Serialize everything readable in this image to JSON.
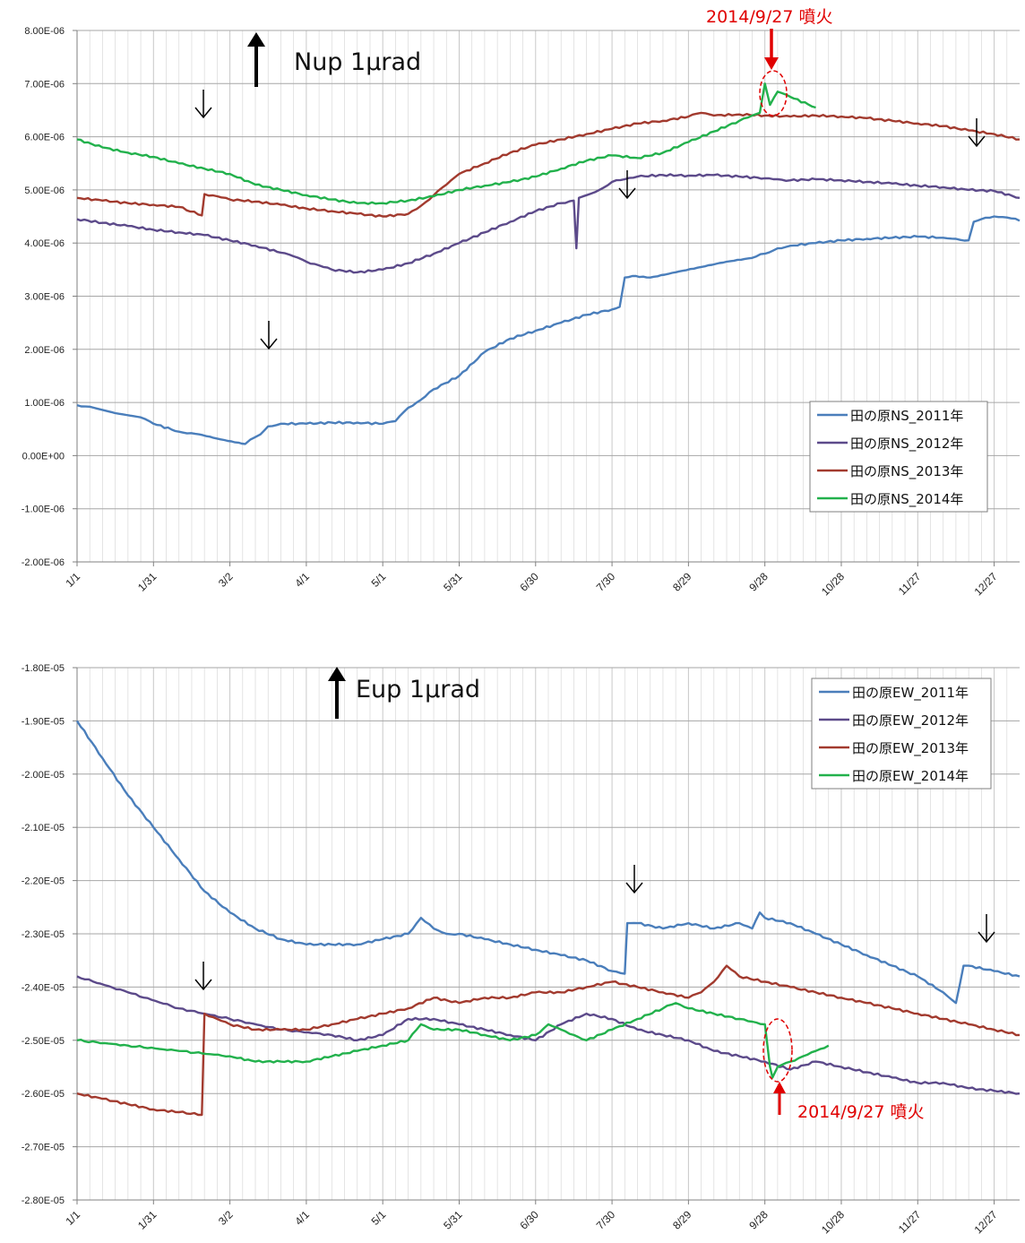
{
  "colors": {
    "s2011": "#4a7ebb",
    "s2012": "#5c4a8a",
    "s2013": "#a23a2e",
    "s2014": "#22b14c",
    "annotation": "#e00000",
    "grid": "#d9d9d9",
    "axis_major": "#a6a6a6"
  },
  "chart_data": [
    {
      "type": "line",
      "ylim": [
        -2e-06,
        8e-06
      ],
      "y_tick_labels": [
        "8.00E-06",
        "7.00E-06",
        "6.00E-06",
        "5.00E-06",
        "4.00E-06",
        "3.00E-06",
        "2.00E-06",
        "1.00E-06",
        "0.00E+00",
        "-1.00E-06",
        "-2.00E-06"
      ],
      "x_tick_labels": [
        "1/1",
        "1/31",
        "3/2",
        "4/1",
        "5/1",
        "5/31",
        "6/30",
        "7/30",
        "8/29",
        "9/28",
        "10/28",
        "11/27",
        "12/27"
      ],
      "xlim_days": [
        0,
        370
      ],
      "unit_label": "Nup 1μrad",
      "eruption_label": "2014/9/27 噴火",
      "legend": [
        "田の原NS_2011年",
        "田の原NS_2012年",
        "田の原NS_2013年",
        "田の原NS_2014年"
      ],
      "series": [
        {
          "name": "田の原NS_2011年",
          "color_key": "s2011",
          "x": [
            0,
            5,
            15,
            25,
            30,
            40,
            48,
            55,
            62,
            66,
            68,
            72,
            75,
            80,
            90,
            100,
            110,
            120,
            125,
            130,
            135,
            140,
            150,
            160,
            170,
            180,
            190,
            200,
            210,
            213,
            215,
            218,
            225,
            235,
            245,
            255,
            265,
            270,
            275,
            280,
            290,
            300,
            310,
            320,
            330,
            340,
            345,
            350,
            352,
            355,
            360,
            365,
            370
          ],
          "y": [
            9.5e-07,
            9.2e-07,
            8e-07,
            7.2e-07,
            6e-07,
            4.5e-07,
            4e-07,
            3.2e-07,
            2.5e-07,
            2.2e-07,
            3e-07,
            4e-07,
            5.5e-07,
            6e-07,
            6e-07,
            6.2e-07,
            6.2e-07,
            6e-07,
            6.5e-07,
            9e-07,
            1.05e-06,
            1.25e-06,
            1.5e-06,
            1.95e-06,
            2.2e-06,
            2.35e-06,
            2.5e-06,
            2.65e-06,
            2.75e-06,
            2.8e-06,
            3.35e-06,
            3.38e-06,
            3.35e-06,
            3.45e-06,
            3.55e-06,
            3.65e-06,
            3.72e-06,
            3.8e-06,
            3.9e-06,
            3.95e-06,
            4e-06,
            4.05e-06,
            4.08e-06,
            4.1e-06,
            4.12e-06,
            4.1e-06,
            4.08e-06,
            4.05e-06,
            4.4e-06,
            4.45e-06,
            4.5e-06,
            4.48e-06,
            4.42e-06
          ]
        },
        {
          "name": "田の原NS_2012年",
          "color_key": "s2012",
          "x": [
            0,
            10,
            20,
            30,
            40,
            50,
            60,
            70,
            80,
            85,
            90,
            95,
            100,
            110,
            120,
            130,
            140,
            150,
            160,
            170,
            180,
            190,
            195,
            196,
            197,
            200,
            205,
            210,
            215,
            220,
            230,
            240,
            250,
            260,
            270,
            275,
            280,
            290,
            300,
            310,
            320,
            330,
            340,
            350,
            360,
            370
          ],
          "y": [
            4.45e-06,
            4.38e-06,
            4.32e-06,
            4.25e-06,
            4.2e-06,
            4.15e-06,
            4.05e-06,
            3.95e-06,
            3.82e-06,
            3.75e-06,
            3.65e-06,
            3.58e-06,
            3.5e-06,
            3.45e-06,
            3.5e-06,
            3.62e-06,
            3.8e-06,
            4e-06,
            4.2e-06,
            4.4e-06,
            4.6e-06,
            4.75e-06,
            4.8e-06,
            3.9e-06,
            4.85e-06,
            4.9e-06,
            5e-06,
            5.15e-06,
            5.2e-06,
            5.25e-06,
            5.28e-06,
            5.27e-06,
            5.28e-06,
            5.25e-06,
            5.22e-06,
            5.2e-06,
            5.18e-06,
            5.2e-06,
            5.18e-06,
            5.15e-06,
            5.12e-06,
            5.08e-06,
            5.05e-06,
            5e-06,
            4.98e-06,
            4.85e-06
          ]
        },
        {
          "name": "田の原NS_2013年",
          "color_key": "s2013",
          "x": [
            0,
            10,
            20,
            30,
            40,
            49,
            50,
            55,
            60,
            70,
            80,
            90,
            100,
            110,
            120,
            130,
            135,
            140,
            145,
            150,
            160,
            170,
            180,
            190,
            200,
            210,
            220,
            230,
            240,
            245,
            250,
            260,
            270,
            280,
            290,
            300,
            310,
            320,
            330,
            340,
            350,
            360,
            370
          ],
          "y": [
            4.85e-06,
            4.8e-06,
            4.75e-06,
            4.72e-06,
            4.68e-06,
            4.52e-06,
            4.92e-06,
            4.88e-06,
            4.82e-06,
            4.78e-06,
            4.72e-06,
            4.65e-06,
            4.6e-06,
            4.55e-06,
            4.5e-06,
            4.55e-06,
            4.7e-06,
            4.9e-06,
            5.1e-06,
            5.3e-06,
            5.5e-06,
            5.7e-06,
            5.85e-06,
            5.95e-06,
            6.05e-06,
            6.15e-06,
            6.25e-06,
            6.3e-06,
            6.38e-06,
            6.45e-06,
            6.4e-06,
            6.42e-06,
            6.4e-06,
            6.38e-06,
            6.4e-06,
            6.38e-06,
            6.35e-06,
            6.3e-06,
            6.25e-06,
            6.2e-06,
            6.12e-06,
            6.05e-06,
            5.95e-06
          ]
        },
        {
          "name": "田の原NS_2014年",
          "color_key": "s2014",
          "x": [
            0,
            10,
            20,
            30,
            40,
            50,
            60,
            70,
            80,
            90,
            100,
            110,
            120,
            130,
            140,
            150,
            160,
            170,
            180,
            190,
            200,
            210,
            220,
            230,
            240,
            250,
            260,
            265,
            268,
            270,
            272,
            275,
            280,
            290
          ],
          "y": [
            5.95e-06,
            5.8e-06,
            5.7e-06,
            5.62e-06,
            5.5e-06,
            5.4e-06,
            5.3e-06,
            5.1e-06,
            5e-06,
            4.9e-06,
            4.82e-06,
            4.75e-06,
            4.75e-06,
            4.8e-06,
            4.88e-06,
            5e-06,
            5.08e-06,
            5.15e-06,
            5.25e-06,
            5.4e-06,
            5.55e-06,
            5.65e-06,
            5.6e-06,
            5.7e-06,
            5.9e-06,
            6.1e-06,
            6.3e-06,
            6.4e-06,
            6.45e-06,
            7e-06,
            6.6e-06,
            6.85e-06,
            6.75e-06,
            6.55e-06
          ]
        }
      ]
    },
    {
      "type": "line",
      "ylim": [
        -2.8e-05,
        -1.8e-05
      ],
      "y_tick_labels": [
        "-1.80E-05",
        "-1.90E-05",
        "-2.00E-05",
        "-2.10E-05",
        "-2.20E-05",
        "-2.30E-05",
        "-2.40E-05",
        "-2.50E-05",
        "-2.60E-05",
        "-2.70E-05",
        "-2.80E-05"
      ],
      "x_tick_labels": [
        "1/1",
        "1/31",
        "3/2",
        "4/1",
        "5/1",
        "5/31",
        "6/30",
        "7/30",
        "8/29",
        "9/28",
        "10/28",
        "11/27",
        "12/27"
      ],
      "xlim_days": [
        0,
        370
      ],
      "unit_label": "Eup 1μrad",
      "eruption_label": "2014/9/27 噴火",
      "legend": [
        "田の原EW_2011年",
        "田の原EW_2012年",
        "田の原EW_2013年",
        "田の原EW_2014年"
      ],
      "series": [
        {
          "name": "田の原EW_2011年",
          "color_key": "s2011",
          "x": [
            0,
            10,
            20,
            30,
            40,
            50,
            60,
            70,
            80,
            90,
            100,
            110,
            120,
            130,
            135,
            140,
            145,
            150,
            160,
            170,
            180,
            190,
            200,
            210,
            215,
            216,
            220,
            230,
            240,
            250,
            260,
            265,
            268,
            270,
            280,
            290,
            300,
            310,
            320,
            330,
            340,
            345,
            348,
            350,
            360,
            370
          ],
          "y": [
            -1.9e-05,
            -1.97e-05,
            -2.04e-05,
            -2.1e-05,
            -2.16e-05,
            -2.22e-05,
            -2.26e-05,
            -2.29e-05,
            -2.31e-05,
            -2.32e-05,
            -2.32e-05,
            -2.32e-05,
            -2.31e-05,
            -2.3e-05,
            -2.27e-05,
            -2.29e-05,
            -2.3e-05,
            -2.3e-05,
            -2.31e-05,
            -2.32e-05,
            -2.33e-05,
            -2.34e-05,
            -2.35e-05,
            -2.37e-05,
            -2.375e-05,
            -2.28e-05,
            -2.28e-05,
            -2.29e-05,
            -2.28e-05,
            -2.29e-05,
            -2.28e-05,
            -2.29e-05,
            -2.26e-05,
            -2.27e-05,
            -2.28e-05,
            -2.3e-05,
            -2.32e-05,
            -2.34e-05,
            -2.36e-05,
            -2.38e-05,
            -2.41e-05,
            -2.43e-05,
            -2.36e-05,
            -2.36e-05,
            -2.37e-05,
            -2.38e-05
          ]
        },
        {
          "name": "田の原EW_2012年",
          "color_key": "s2012",
          "x": [
            0,
            20,
            40,
            60,
            80,
            100,
            110,
            120,
            130,
            140,
            150,
            160,
            170,
            180,
            190,
            200,
            210,
            220,
            230,
            240,
            250,
            260,
            270,
            280,
            290,
            300,
            310,
            320,
            330,
            340,
            350,
            360,
            370
          ],
          "y": [
            -2.38e-05,
            -2.41e-05,
            -2.44e-05,
            -2.46e-05,
            -2.48e-05,
            -2.49e-05,
            -2.5e-05,
            -2.49e-05,
            -2.46e-05,
            -2.46e-05,
            -2.47e-05,
            -2.48e-05,
            -2.49e-05,
            -2.5e-05,
            -2.47e-05,
            -2.45e-05,
            -2.46e-05,
            -2.48e-05,
            -2.49e-05,
            -2.5e-05,
            -2.52e-05,
            -2.53e-05,
            -2.54e-05,
            -2.555e-05,
            -2.54e-05,
            -2.55e-05,
            -2.56e-05,
            -2.57e-05,
            -2.58e-05,
            -2.58e-05,
            -2.59e-05,
            -2.595e-05,
            -2.6e-05
          ]
        },
        {
          "name": "田の原EW_2013年",
          "color_key": "s2013",
          "x": [
            0,
            10,
            20,
            30,
            40,
            49,
            50,
            55,
            60,
            70,
            80,
            90,
            100,
            110,
            120,
            130,
            140,
            150,
            160,
            170,
            180,
            190,
            200,
            210,
            220,
            230,
            240,
            245,
            250,
            255,
            260,
            270,
            280,
            290,
            300,
            310,
            320,
            330,
            340,
            350,
            360,
            370
          ],
          "y": [
            -2.6e-05,
            -2.61e-05,
            -2.62e-05,
            -2.63e-05,
            -2.635e-05,
            -2.64e-05,
            -2.45e-05,
            -2.46e-05,
            -2.47e-05,
            -2.48e-05,
            -2.48e-05,
            -2.48e-05,
            -2.47e-05,
            -2.46e-05,
            -2.45e-05,
            -2.44e-05,
            -2.42e-05,
            -2.43e-05,
            -2.42e-05,
            -2.42e-05,
            -2.41e-05,
            -2.41e-05,
            -2.4e-05,
            -2.39e-05,
            -2.4e-05,
            -2.41e-05,
            -2.42e-05,
            -2.41e-05,
            -2.39e-05,
            -2.36e-05,
            -2.38e-05,
            -2.39e-05,
            -2.4e-05,
            -2.41e-05,
            -2.42e-05,
            -2.43e-05,
            -2.44e-05,
            -2.45e-05,
            -2.46e-05,
            -2.47e-05,
            -2.48e-05,
            -2.49e-05
          ]
        },
        {
          "name": "田の原EW_2014年",
          "color_key": "s2014",
          "x": [
            0,
            20,
            40,
            60,
            70,
            80,
            90,
            100,
            110,
            120,
            130,
            135,
            140,
            150,
            160,
            170,
            180,
            185,
            190,
            195,
            200,
            210,
            220,
            230,
            235,
            240,
            250,
            260,
            265,
            270,
            272,
            273,
            275,
            280,
            285,
            290,
            295
          ],
          "y": [
            -2.5e-05,
            -2.51e-05,
            -2.52e-05,
            -2.53e-05,
            -2.54e-05,
            -2.54e-05,
            -2.54e-05,
            -2.53e-05,
            -2.52e-05,
            -2.51e-05,
            -2.5e-05,
            -2.47e-05,
            -2.48e-05,
            -2.48e-05,
            -2.49e-05,
            -2.5e-05,
            -2.49e-05,
            -2.47e-05,
            -2.48e-05,
            -2.49e-05,
            -2.5e-05,
            -2.48e-05,
            -2.46e-05,
            -2.44e-05,
            -2.43e-05,
            -2.44e-05,
            -2.45e-05,
            -2.46e-05,
            -2.465e-05,
            -2.47e-05,
            -2.55e-05,
            -2.57e-05,
            -2.55e-05,
            -2.54e-05,
            -2.53e-05,
            -2.52e-05,
            -2.51e-05
          ]
        }
      ]
    }
  ]
}
